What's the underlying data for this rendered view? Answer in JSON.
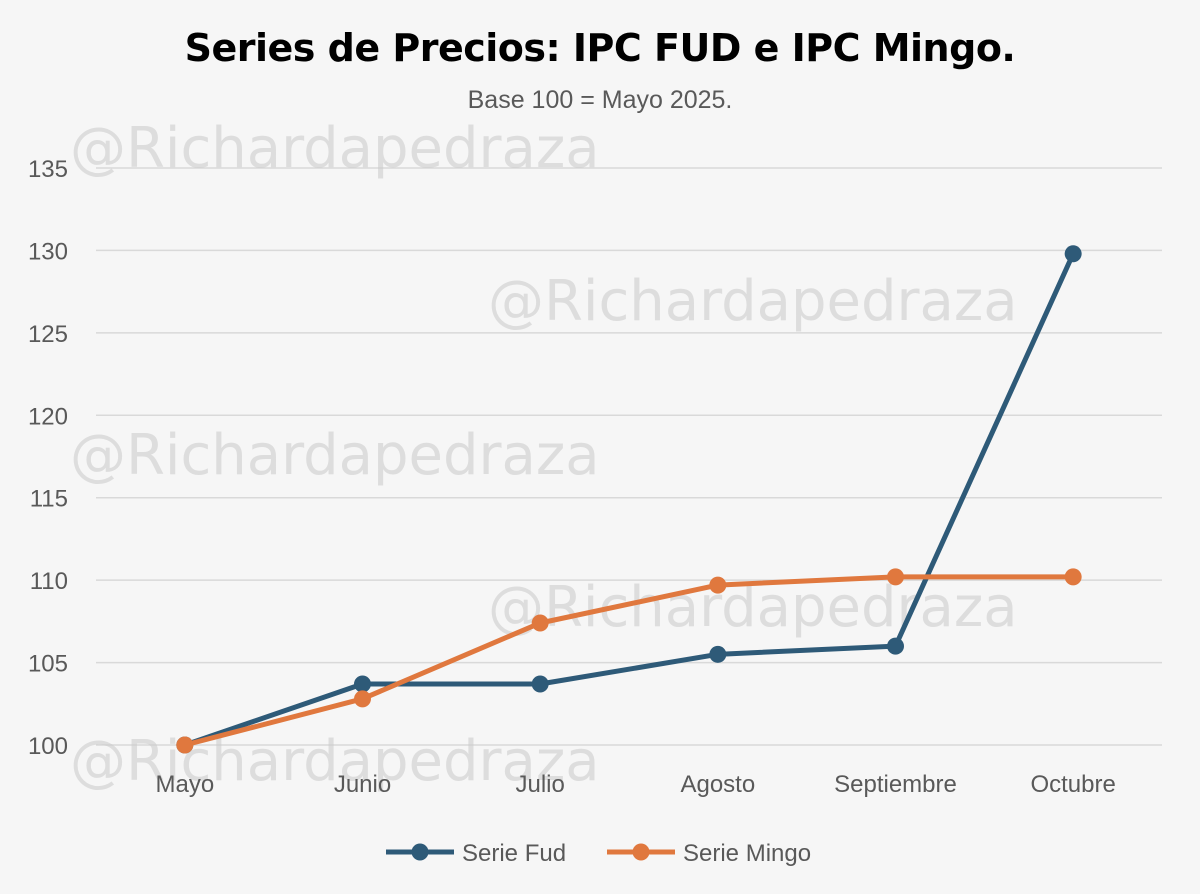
{
  "watermarks": [
    "@Richardapedraza",
    "@Richardapedraza",
    "@Richardapedraza",
    "@Richardapedraza",
    "@Richardapedraza"
  ],
  "chart_data": {
    "type": "line",
    "title": "Series de Precios: IPC FUD e IPC Mingo.",
    "subtitle": "Base 100 = Mayo 2025.",
    "xlabel": "",
    "ylabel": "",
    "categories": [
      "Mayo",
      "Junio",
      "Julio",
      "Agosto",
      "Septiembre",
      "Octubre"
    ],
    "ylim": [
      100,
      135
    ],
    "yticks": [
      100,
      105,
      110,
      115,
      120,
      125,
      130,
      135
    ],
    "grid": true,
    "legend_position": "bottom",
    "series": [
      {
        "name": "Serie Fud",
        "color": "#2e5a78",
        "values": [
          100,
          103.7,
          103.7,
          105.5,
          106.0,
          129.8
        ]
      },
      {
        "name": "Serie Mingo",
        "color": "#e0783e",
        "values": [
          100,
          102.8,
          107.4,
          109.7,
          110.2,
          110.2
        ]
      }
    ]
  }
}
